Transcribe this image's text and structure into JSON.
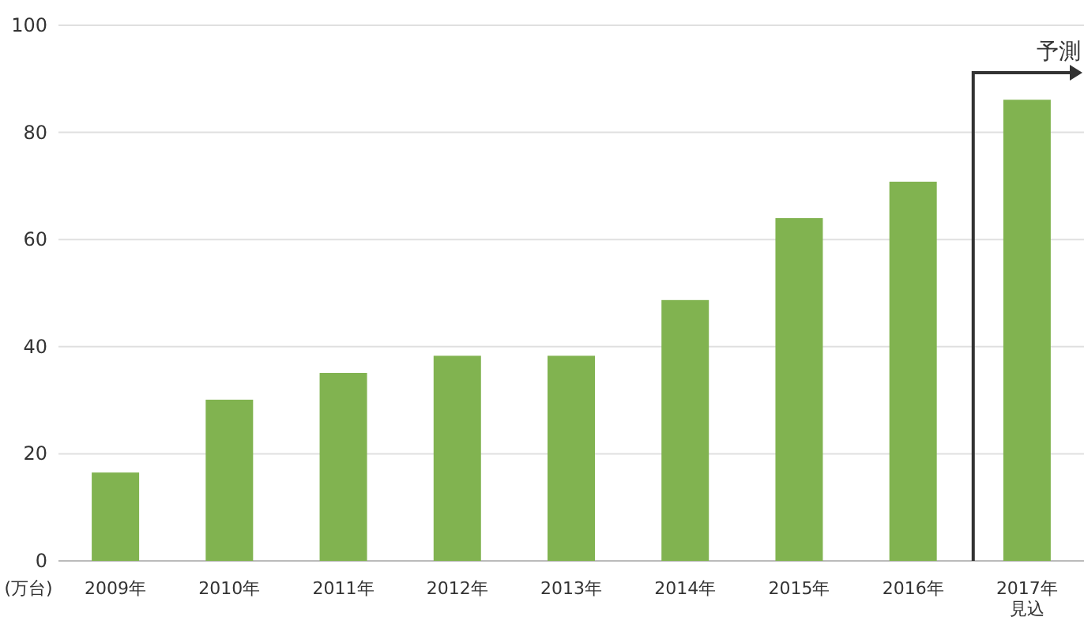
{
  "chart_data": {
    "type": "bar",
    "ylabel": "(万台)",
    "categories": [
      "2009年",
      "2010年",
      "2011年",
      "2012年",
      "2013年",
      "2014年",
      "2015年",
      "2016年",
      "2017年見込"
    ],
    "values": [
      16.5,
      30.1,
      35.1,
      38.3,
      38.3,
      48.7,
      64,
      70.8,
      86.1
    ],
    "color": "#81b350",
    "ylim": [
      0,
      100
    ],
    "yticks": [
      0,
      20,
      40,
      60,
      80,
      100
    ],
    "grid": "y",
    "annotations": [
      "予測"
    ]
  }
}
